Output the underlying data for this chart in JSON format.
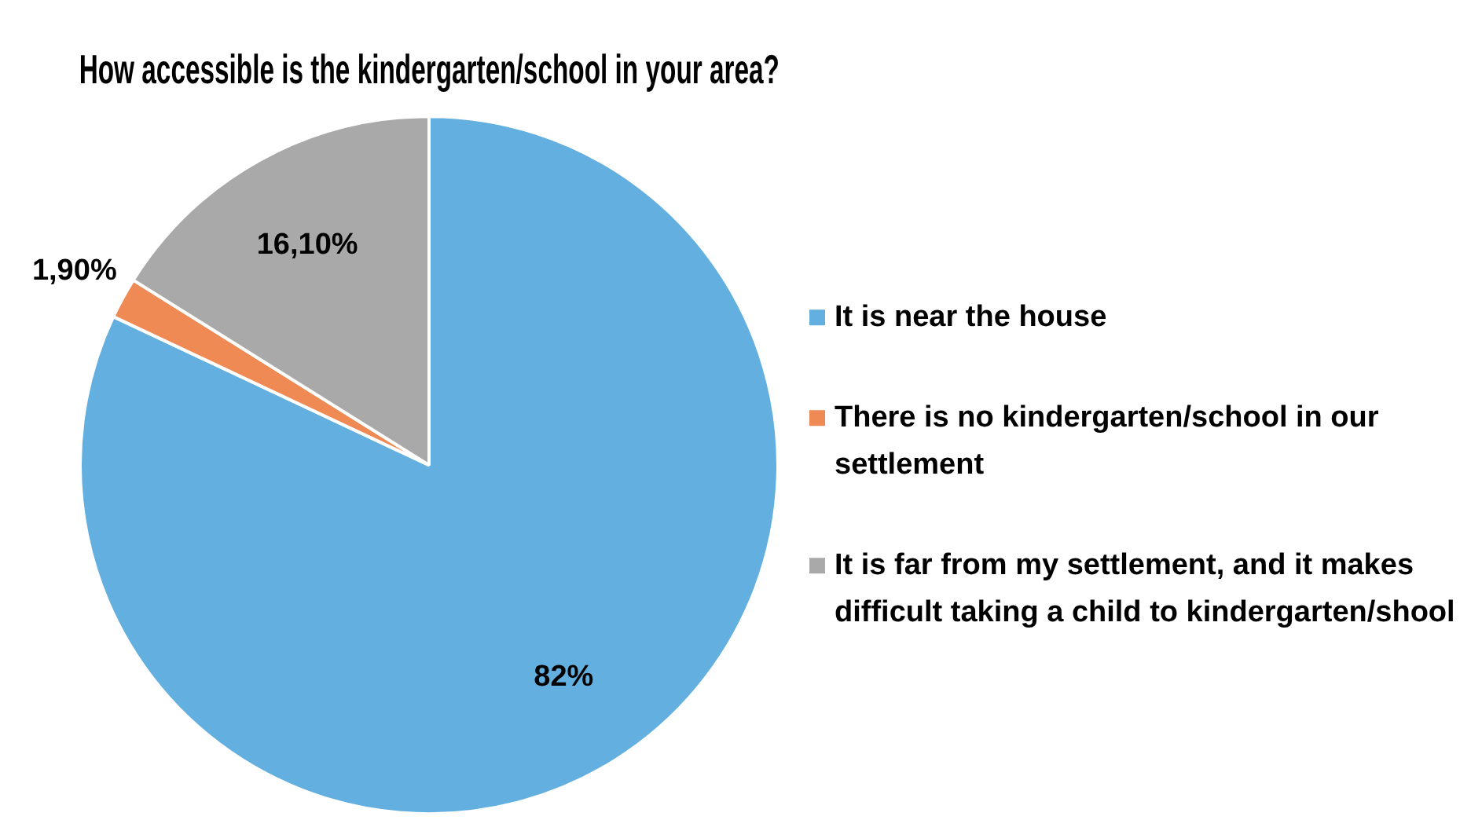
{
  "chart_data": {
    "type": "pie",
    "title": "How accessible is the kindergarten/school in your area?",
    "categories": [
      "It is near the house",
      "There is no kindergarten/school in our settlement",
      "It is far from my settlement, and it makes difficult taking a child to kindergarten/shool"
    ],
    "values": [
      82,
      1.9,
      16.1
    ],
    "value_labels": [
      "82%",
      "1,90%",
      "16,10%"
    ],
    "colors": [
      "#62afe0",
      "#f08a55",
      "#a9a9a9"
    ],
    "legend": "right"
  }
}
